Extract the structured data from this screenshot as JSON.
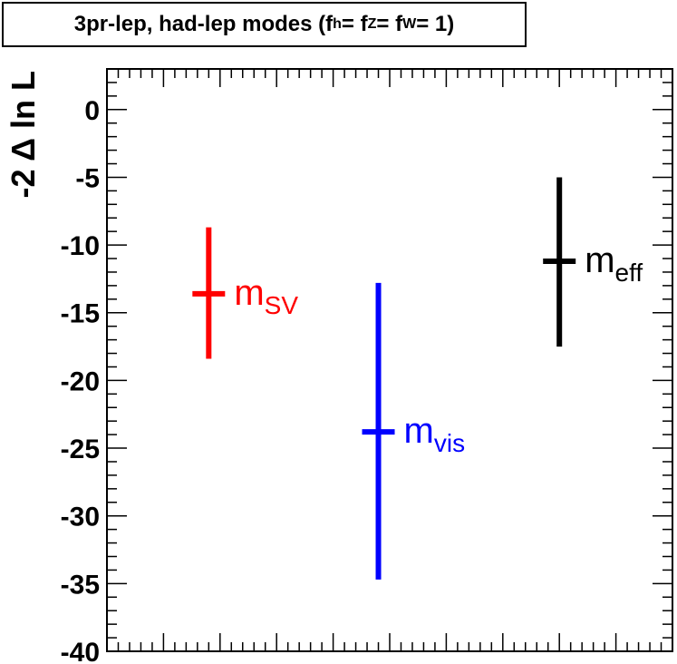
{
  "chart_data": {
    "type": "errorbar",
    "title_parts": {
      "prefix": "3pr-lep, had-lep modes (f",
      "h": "h",
      "eq1": " = f",
      "z": "Z",
      "eq2": " = f",
      "w": "W",
      "suffix": " = 1)"
    },
    "ylabel": "-2 Δ ln L",
    "ylim": [
      -40,
      3
    ],
    "yticks": [
      0,
      -5,
      -10,
      -15,
      -20,
      -25,
      -30,
      -35,
      -40
    ],
    "xlim": [
      0,
      1
    ],
    "points": [
      {
        "label_main": "m",
        "label_sub": "SV",
        "x": 0.18,
        "y": -13.6,
        "y_low": -18.4,
        "y_high": -8.7,
        "color": "#ff0000"
      },
      {
        "label_main": "m",
        "label_sub": "vis",
        "x": 0.48,
        "y": -23.8,
        "y_low": -34.7,
        "y_high": -12.8,
        "color": "#0000ff"
      },
      {
        "label_main": "m",
        "label_sub": "eff",
        "x": 0.8,
        "y": -11.2,
        "y_low": -17.5,
        "y_high": -5.0,
        "color": "#000000"
      }
    ]
  }
}
